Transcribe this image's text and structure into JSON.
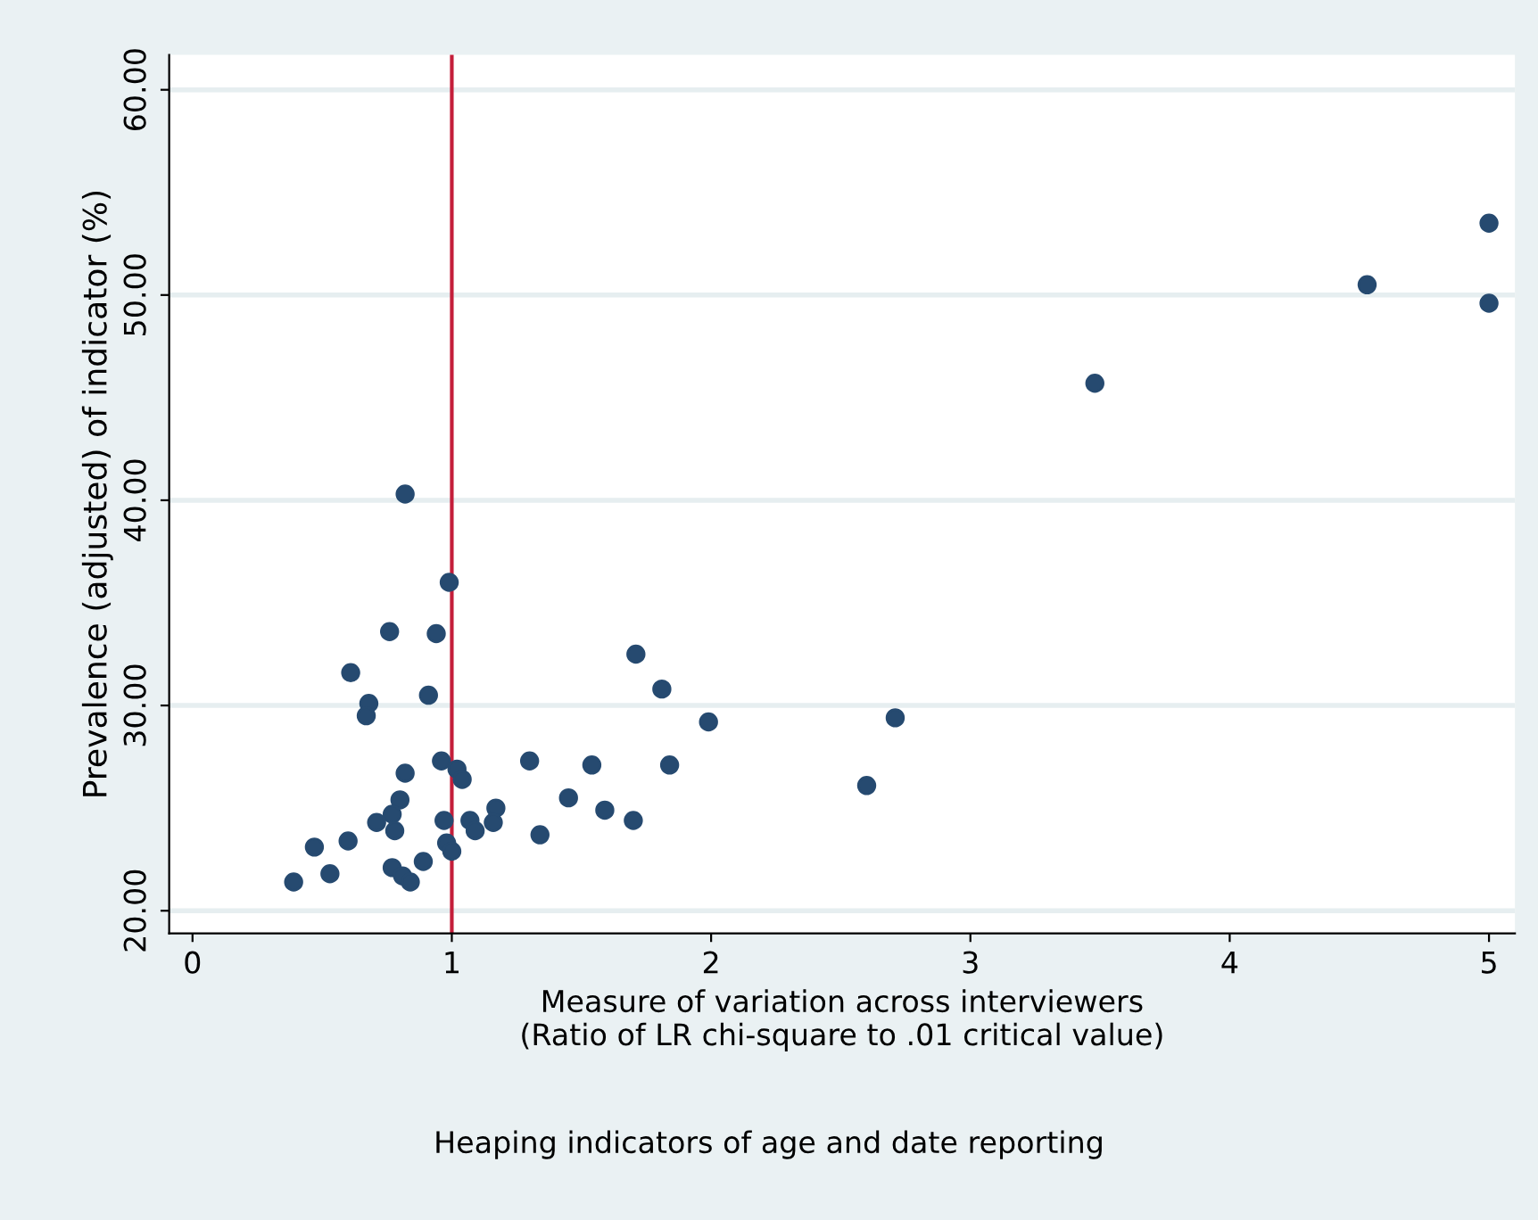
{
  "chart_data": {
    "type": "scatter",
    "xlabel": "Measure of variation across interviewers\n(Ratio of LR chi-square to .01 critical value)",
    "ylabel": "Prevalence (adjusted) of indicator (%)",
    "annotations": [
      "Heaping indicators of age and date reporting"
    ],
    "x": [
      0.82,
      0.99,
      0.76,
      0.94,
      0.61,
      0.68,
      0.67,
      0.91,
      0.96,
      1.02,
      1.04,
      1.3,
      0.82,
      0.8,
      0.77,
      0.71,
      0.78,
      0.97,
      1.07,
      1.09,
      1.17,
      1.16,
      0.98,
      1.0,
      0.89,
      0.77,
      0.81,
      0.84,
      0.47,
      0.6,
      0.53,
      0.39,
      1.34,
      1.45,
      1.71,
      1.81,
      1.99,
      2.71,
      2.6,
      1.54,
      1.84,
      1.59,
      1.7,
      3.48,
      4.53,
      5.0,
      5.0
    ],
    "series": [
      {
        "color": "#264a70",
        "marker": "circle",
        "values": [
          40.3,
          36.0,
          33.6,
          33.5,
          31.6,
          30.1,
          29.5,
          30.5,
          27.3,
          26.9,
          26.4,
          27.3,
          26.7,
          25.4,
          24.7,
          24.3,
          23.9,
          24.4,
          24.4,
          23.9,
          25.0,
          24.3,
          23.3,
          22.9,
          22.4,
          22.1,
          21.7,
          21.4,
          23.1,
          23.4,
          21.8,
          21.4,
          23.7,
          25.5,
          32.5,
          30.8,
          29.2,
          29.4,
          26.1,
          27.1,
          27.1,
          24.9,
          24.4,
          45.7,
          50.5,
          53.5,
          49.6
        ]
      }
    ],
    "xlim": [
      -0.09,
      5.1
    ],
    "xticks": [
      0,
      1,
      2,
      3,
      4,
      5
    ],
    "ylim": [
      18.9,
      61.7
    ],
    "yticks": [
      {
        "value": 20,
        "label": "20.00"
      },
      {
        "value": 30,
        "label": "30.00"
      },
      {
        "value": 40,
        "label": "40.00"
      },
      {
        "value": 50,
        "label": "50.00"
      },
      {
        "value": 60,
        "label": "60.00"
      }
    ],
    "grid": "y",
    "ref_lines": [
      {
        "axis": "x",
        "value": 1,
        "color": "#c41e3a",
        "line_style": "solid"
      }
    ]
  }
}
